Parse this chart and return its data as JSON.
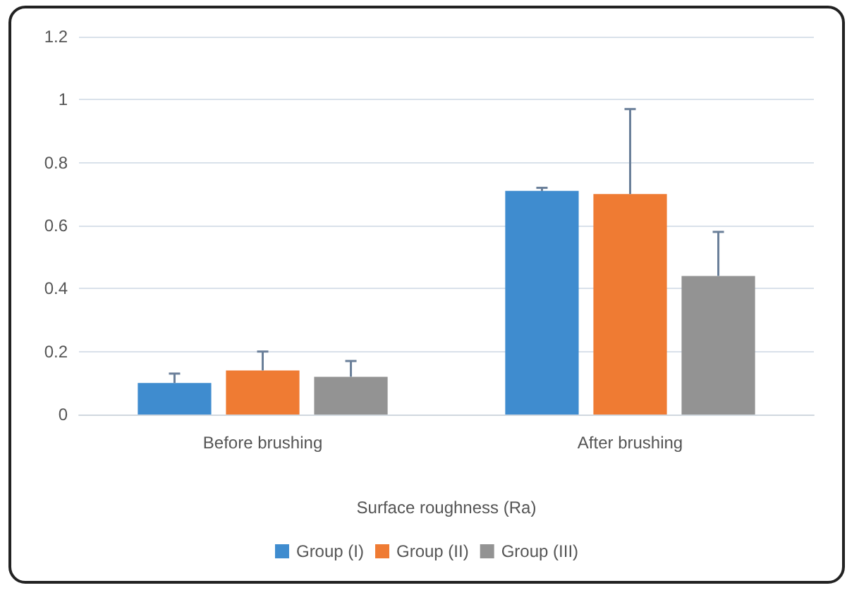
{
  "chart_data": {
    "type": "bar",
    "xlabel": "Surface roughness (Ra)",
    "categories": [
      "Before brushing",
      "After brushing"
    ],
    "series": [
      {
        "name": "Group (I)",
        "color": "#3f8ccf",
        "values": [
          0.1,
          0.71
        ],
        "errors": [
          [
            0.1,
            0.13
          ],
          [
            0.71,
            0.72
          ]
        ]
      },
      {
        "name": "Group (II)",
        "color": "#ef7b33",
        "values": [
          0.14,
          0.7
        ],
        "errors": [
          [
            0.14,
            0.2
          ],
          [
            0.7,
            0.97
          ]
        ]
      },
      {
        "name": "Group (III)",
        "color": "#939393",
        "values": [
          0.12,
          0.44
        ],
        "errors": [
          [
            0.12,
            0.17
          ],
          [
            0.44,
            0.58
          ]
        ]
      }
    ],
    "ylim": [
      0,
      1.2
    ],
    "yticks": [
      0,
      0.2,
      0.4,
      0.6,
      0.8,
      1,
      1.2
    ],
    "grid": "y",
    "legend": "bottom"
  }
}
